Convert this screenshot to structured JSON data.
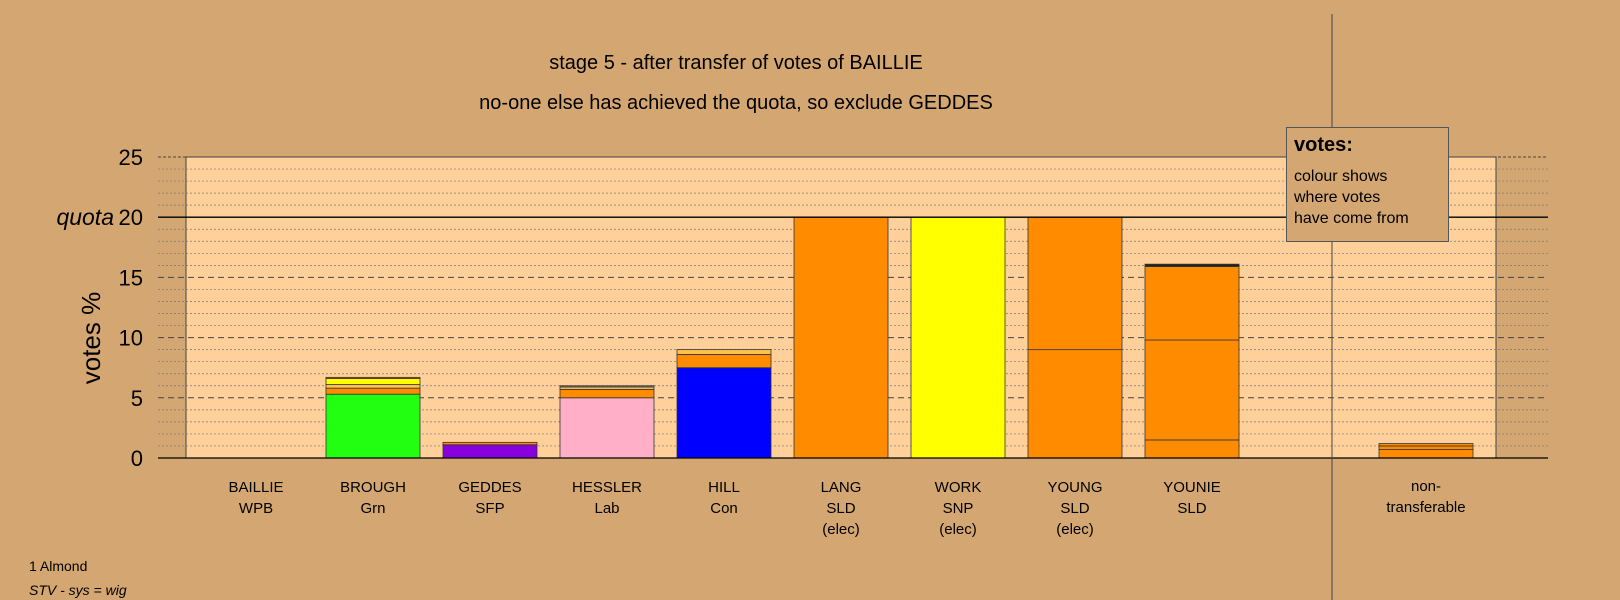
{
  "chart_data": {
    "type": "bar",
    "stacked": true,
    "title": "stage 5 - after transfer of votes of BAILLIE",
    "subtitle": "no-one else has achieved the quota, so exclude GEDDES",
    "ylabel": "votes %",
    "ylim": [
      0,
      25
    ],
    "yticks": [
      0,
      5,
      10,
      15,
      20,
      25
    ],
    "quota": 20,
    "quota_label": "quota",
    "grid": true,
    "categories": [
      {
        "name": "BAILLIE",
        "party": "WPB",
        "status": ""
      },
      {
        "name": "BROUGH",
        "party": "Grn",
        "status": ""
      },
      {
        "name": "GEDDES",
        "party": "SFP",
        "status": ""
      },
      {
        "name": "HESSLER",
        "party": "Lab",
        "status": ""
      },
      {
        "name": "HILL",
        "party": "Con",
        "status": ""
      },
      {
        "name": "LANG",
        "party": "SLD",
        "status": "(elec)"
      },
      {
        "name": "WORK",
        "party": "SNP",
        "status": "(elec)"
      },
      {
        "name": "YOUNG",
        "party": "SLD",
        "status": "(elec)"
      },
      {
        "name": "YOUNIE",
        "party": "SLD",
        "status": ""
      },
      {
        "name": "non-",
        "party": "transferable",
        "status": ""
      }
    ],
    "stacks": [
      [],
      [
        {
          "value": 5.3,
          "color": "#22FF11"
        },
        {
          "value": 0.5,
          "color": "#FF8C00"
        },
        {
          "value": 0.3,
          "color": "#FFC04D"
        },
        {
          "value": 0.5,
          "color": "#FFFF00"
        },
        {
          "value": 0.1,
          "color": "#FF8C00"
        }
      ],
      [
        {
          "value": 1.1,
          "color": "#8800DD"
        },
        {
          "value": 0.2,
          "color": "#FF8C00"
        }
      ],
      [
        {
          "value": 5.0,
          "color": "#FFB0C8"
        },
        {
          "value": 0.7,
          "color": "#FF8C00"
        },
        {
          "value": 0.2,
          "color": "#FFC04D"
        },
        {
          "value": 0.1,
          "color": "#888888"
        }
      ],
      [
        {
          "value": 7.5,
          "color": "#0000FF"
        },
        {
          "value": 1.1,
          "color": "#FF8C00"
        },
        {
          "value": 0.4,
          "color": "#FFC04D"
        }
      ],
      [
        {
          "value": 20.0,
          "color": "#FF8C00"
        }
      ],
      [
        {
          "value": 20.0,
          "color": "#FFFF00"
        }
      ],
      [
        {
          "value": 9.0,
          "color": "#FF8C00"
        },
        {
          "value": 11.0,
          "color": "#FF8C00"
        }
      ],
      [
        {
          "value": 1.5,
          "color": "#FF8C00"
        },
        {
          "value": 8.3,
          "color": "#FF8C00"
        },
        {
          "value": 6.1,
          "color": "#FF8C00"
        },
        {
          "value": 0.2,
          "color": "#222222"
        }
      ],
      [
        {
          "value": 0.7,
          "color": "#FF8C00"
        },
        {
          "value": 0.3,
          "color": "#FF8C00"
        },
        {
          "value": 0.2,
          "color": "#FF8C00"
        }
      ]
    ],
    "legend": {
      "title": "votes:",
      "lines": [
        "colour shows",
        "where votes",
        "have come from"
      ]
    }
  },
  "footer": {
    "line1": "1 Almond",
    "line2": "STV - sys = wig"
  },
  "colors": {
    "background": "#D4A772",
    "plot": "#FFD09A"
  }
}
